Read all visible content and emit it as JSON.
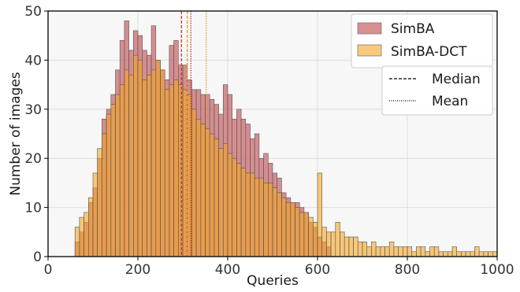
{
  "chart_data": {
    "type": "bar",
    "title": "",
    "xlabel": "Queries",
    "ylabel": "Number of images",
    "xlim": [
      0,
      1000
    ],
    "ylim": [
      0,
      50
    ],
    "xticks": [
      0,
      200,
      400,
      600,
      800,
      1000
    ],
    "yticks": [
      0,
      10,
      20,
      30,
      40,
      50
    ],
    "grid": true,
    "legend_position": "top-right",
    "bin_width": 10,
    "series": [
      {
        "name": "SimBA",
        "color": "#c96a6e",
        "bin_start": [
          60,
          70,
          80,
          90,
          100,
          110,
          120,
          130,
          140,
          150,
          160,
          170,
          180,
          190,
          200,
          210,
          220,
          230,
          240,
          250,
          260,
          270,
          280,
          290,
          300,
          310,
          320,
          330,
          340,
          350,
          360,
          370,
          380,
          390,
          400,
          410,
          420,
          430,
          440,
          450,
          460,
          470,
          480,
          490,
          500,
          510,
          520,
          530,
          540,
          550,
          560,
          570,
          580,
          590,
          600,
          610,
          620
        ],
        "values": [
          3,
          5,
          7,
          11,
          14,
          20,
          28,
          30,
          33,
          38,
          44,
          48,
          42,
          46,
          45,
          42,
          41,
          47,
          40,
          38,
          36,
          43,
          44,
          39,
          39,
          36,
          34,
          34,
          33,
          33,
          32,
          31,
          29,
          35,
          33,
          28,
          30,
          28,
          27,
          24,
          25,
          20,
          21,
          19,
          17,
          16,
          13,
          12,
          11,
          11,
          10,
          9,
          7,
          6,
          4,
          3,
          2
        ]
      },
      {
        "name": "SimBA-DCT",
        "color": "#f5a623",
        "bin_start": [
          60,
          70,
          80,
          90,
          100,
          110,
          120,
          130,
          140,
          150,
          160,
          170,
          180,
          190,
          200,
          210,
          220,
          230,
          240,
          250,
          260,
          270,
          280,
          290,
          300,
          310,
          320,
          330,
          340,
          350,
          360,
          370,
          380,
          390,
          400,
          410,
          420,
          430,
          440,
          450,
          460,
          470,
          480,
          490,
          500,
          510,
          520,
          530,
          540,
          550,
          560,
          570,
          580,
          590,
          600,
          610,
          620,
          630,
          640,
          650,
          660,
          670,
          680,
          690,
          700,
          710,
          720,
          730,
          740,
          750,
          760,
          770,
          780,
          790,
          800,
          810,
          820,
          830,
          840,
          850,
          860,
          870,
          880,
          890,
          900,
          910,
          920,
          930,
          940,
          950,
          960,
          970,
          980,
          990
        ],
        "values": [
          6,
          8,
          9,
          12,
          17,
          22,
          25,
          29,
          31,
          33,
          35,
          38,
          37,
          41,
          40,
          36,
          37,
          38,
          40,
          38,
          34,
          35,
          36,
          35,
          34,
          33,
          30,
          28,
          27,
          26,
          25,
          24,
          22,
          23,
          21,
          20,
          19,
          18,
          17,
          17,
          16,
          16,
          15,
          15,
          14,
          13,
          12,
          11,
          11,
          10,
          9,
          9,
          8,
          7,
          17,
          6,
          5,
          5,
          7,
          5,
          4,
          4,
          4,
          3,
          3,
          2,
          3,
          2,
          2,
          2,
          3,
          2,
          2,
          2,
          2,
          1,
          2,
          2,
          1,
          2,
          2,
          1,
          1,
          1,
          2,
          1,
          1,
          1,
          1,
          2,
          1,
          1,
          1,
          1
        ]
      }
    ],
    "lines": [
      {
        "series": "SimBA",
        "stat": "Median",
        "x": 297
      },
      {
        "series": "SimBA",
        "stat": "Mean",
        "x": 318
      },
      {
        "series": "SimBA-DCT",
        "stat": "Median",
        "x": 310
      },
      {
        "series": "SimBA-DCT",
        "stat": "Mean",
        "x": 352
      }
    ],
    "legend": {
      "series_labels": [
        "SimBA",
        "SimBA-DCT"
      ],
      "line_labels": [
        "Median",
        "Mean"
      ]
    }
  }
}
